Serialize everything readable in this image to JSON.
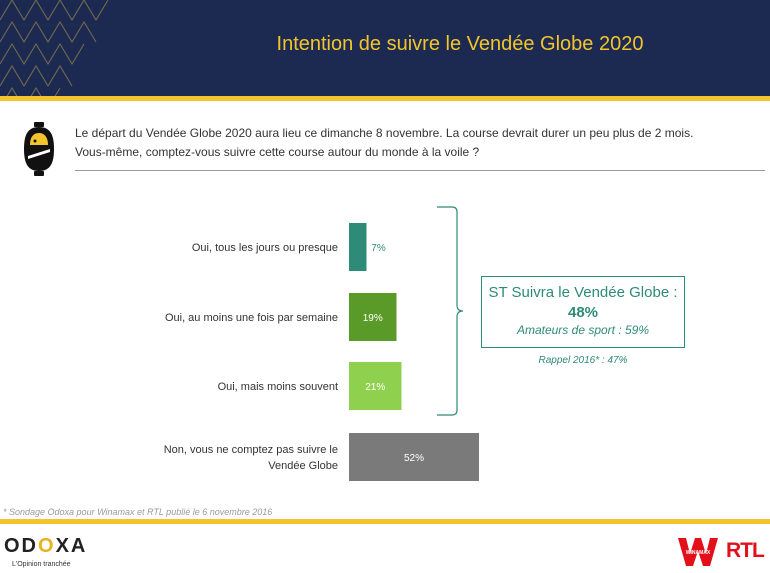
{
  "header": {
    "title": "Intention de suivre le Vendée Globe 2020"
  },
  "question": {
    "line1": "Le départ du Vendée Globe 2020 aura lieu ce dimanche 8 novembre. La course devrait durer un peu plus de 2 mois.",
    "line2": "Vous-même, comptez-vous suivre cette course autour du monde à la voile ?"
  },
  "chart_data": {
    "type": "bar",
    "orientation": "horizontal",
    "categories": [
      [
        "Oui, tous les jours ou presque"
      ],
      [
        "Oui, au moins une fois par semaine"
      ],
      [
        "Oui, mais moins souvent"
      ],
      [
        "Non, vous ne comptez pas suivre le",
        "Vendée Globe"
      ]
    ],
    "values": [
      7,
      19,
      21,
      52
    ],
    "value_labels": [
      "7%",
      "19%",
      "21%",
      "52%"
    ],
    "colors": [
      "#2e8b78",
      "#5a9a28",
      "#8fd14f",
      "#7a7a7a"
    ],
    "xlim": [
      0,
      100
    ],
    "grid": false
  },
  "summary": {
    "title": "ST Suivra le Vendée Globe :",
    "value": "48%",
    "subtitle": "Amateurs de sport : 59%",
    "recall": "Rappel 2016* : 47%"
  },
  "footnote": "* Sondage Odoxa pour Winamax et RTL publié le 6 novembre 2016",
  "brand": {
    "odoxa_letters": [
      "OD",
      "O",
      "XA"
    ],
    "odoxa_tagline": "L'Opinion tranchée",
    "winamax": "WINAMAX",
    "rtl": "RTL"
  }
}
